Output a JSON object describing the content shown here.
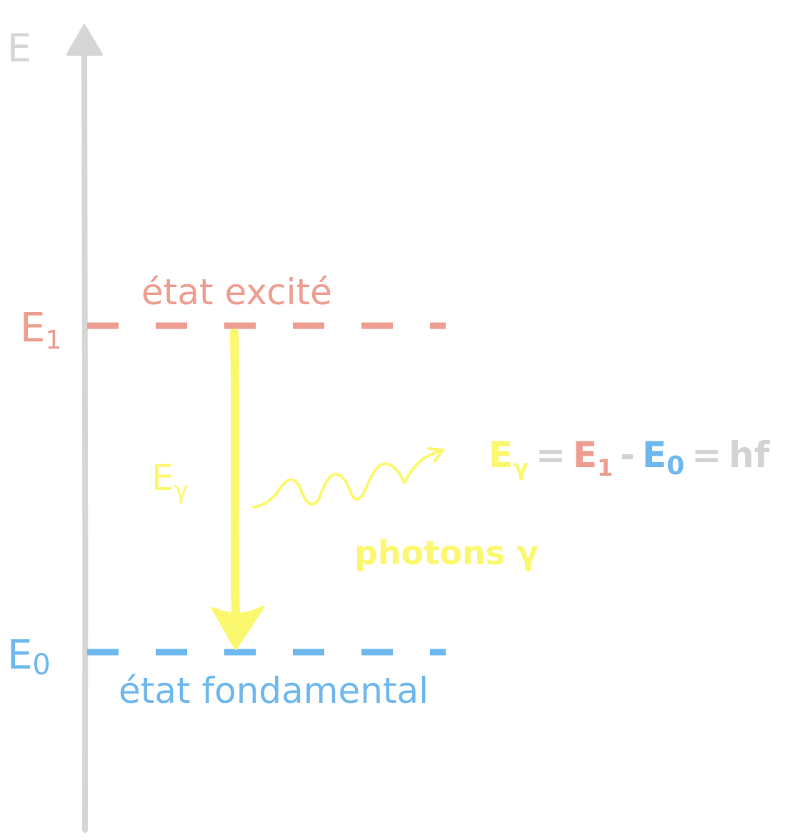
{
  "axis": {
    "label": "E"
  },
  "levels": {
    "e1": {
      "label": "E",
      "sub": "1",
      "state": "état excité"
    },
    "e0": {
      "label": "E",
      "sub": "0",
      "state": "état fondamental"
    }
  },
  "transition": {
    "label": "E",
    "sub": "γ"
  },
  "photon": {
    "label": "photons γ"
  },
  "equation": {
    "e_gamma": "E",
    "e_gamma_sub": "γ",
    "eq1": "=",
    "e1": "E",
    "e1_sub": "1",
    "minus": "-",
    "e0": "E",
    "e0_sub": "0",
    "eq2": "=",
    "hf": "hf"
  },
  "colors": {
    "axis": "#d6d6d6",
    "excited": "#ee9e90",
    "ground": "#6fb8ee",
    "photon": "#fbf870",
    "neutral": "#d3d3d3"
  }
}
